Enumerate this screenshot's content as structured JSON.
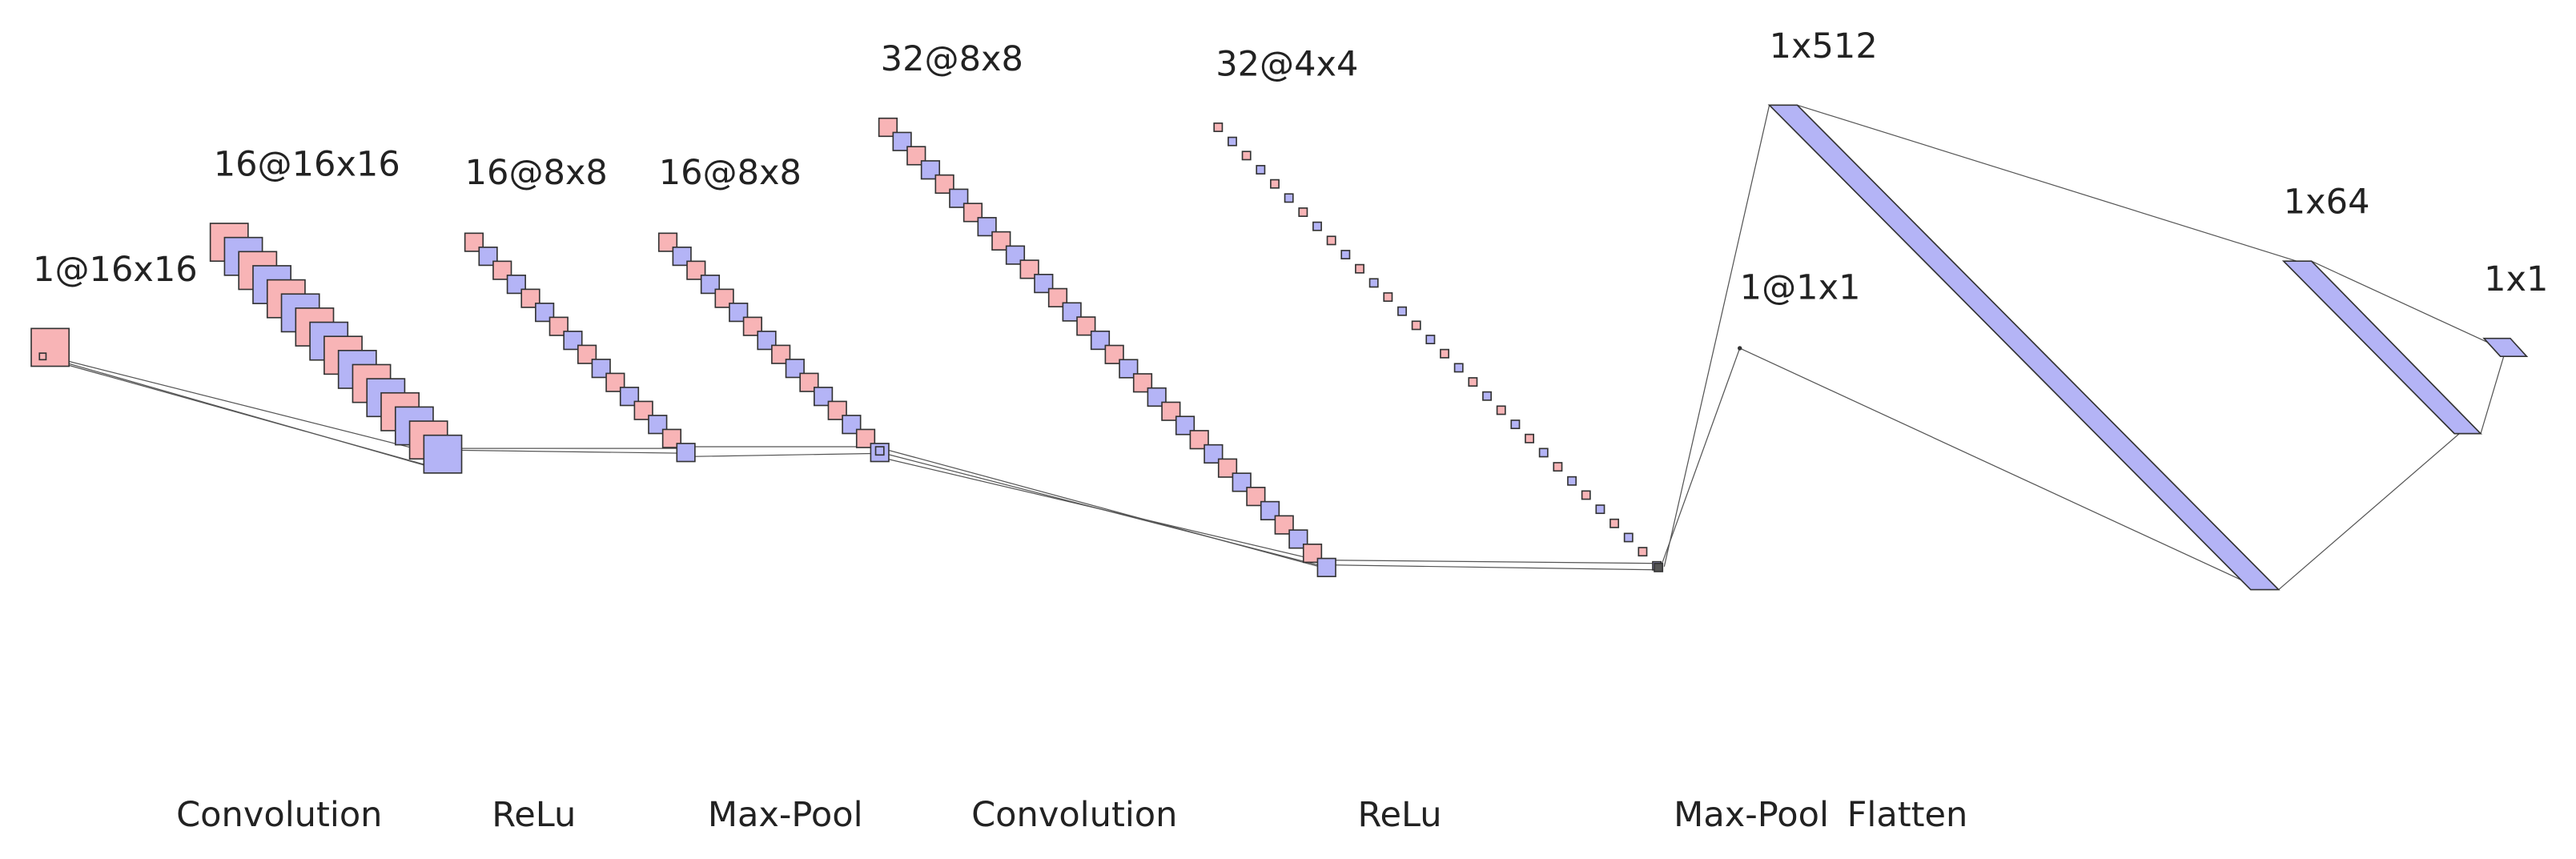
{
  "layers": [
    {
      "label": "1@16x16"
    },
    {
      "label": "16@16x16"
    },
    {
      "label": "16@8x8"
    },
    {
      "label": "16@8x8"
    },
    {
      "label": "32@8x8"
    },
    {
      "label": "32@4x4"
    },
    {
      "label": "1@1x1"
    },
    {
      "label": "1x512"
    },
    {
      "label": "1x64"
    },
    {
      "label": "1x1"
    }
  ],
  "operations": [
    "Convolution",
    "ReLu",
    "Max-Pool",
    "Convolution",
    "ReLu",
    "Max-Pool",
    "Flatten"
  ]
}
